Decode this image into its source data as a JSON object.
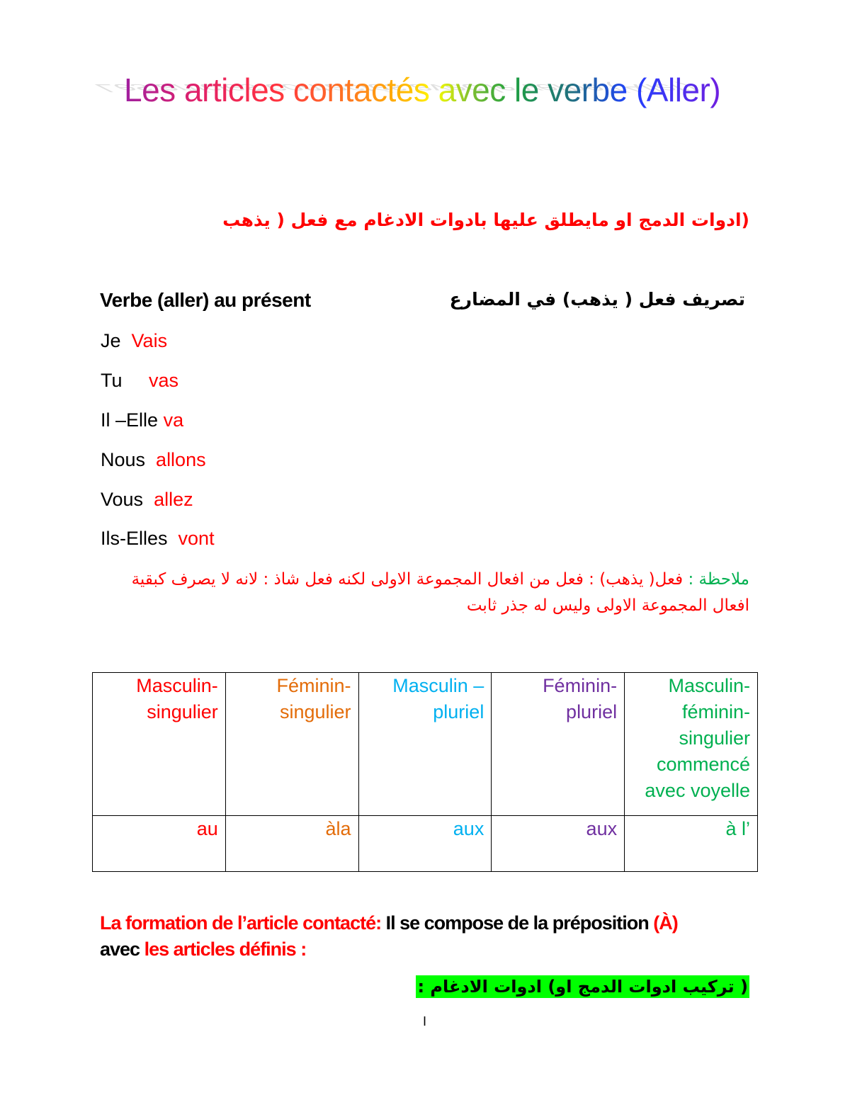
{
  "title": "Les articles contactés  avec le verbe (Aller)",
  "arabic_heading": "(ادوات الدمج  او مايطلق عليها بادوات الادغام  مع فعل ( يذهب",
  "conjugation": {
    "heading_fr": "Verbe (aller) au présent",
    "heading_ar": "تصريف فعل ( يذهب) في المضارع",
    "rows": [
      {
        "pronoun": "Je",
        "verb": "Vais"
      },
      {
        "pronoun": "Tu",
        "verb": "vas"
      },
      {
        "pronoun": "Il –Elle",
        "verb": "va"
      },
      {
        "pronoun": "Nous",
        "verb": "allons"
      },
      {
        "pronoun": "Vous",
        "verb": "allez"
      },
      {
        "pronoun": "Ils-Elles",
        "verb": "vont"
      }
    ]
  },
  "note": {
    "label": "ملاحظة :",
    "text": "فعل( يذهب) : فعل من افعال  المجموعة الاولى لكنه  فعل شاذ : لانه لا يصرف كبقية افعال المجموعة الاولى وليس له جذر ثابت"
  },
  "table": {
    "headers": [
      "Masculin-singulier",
      "Féminin-singulier",
      "Masculin –pluriel",
      "Féminin-pluriel",
      "Masculin-féminin-singulier commencé avec voyelle"
    ],
    "values": [
      "au",
      "àla",
      "aux",
      "aux",
      "à l’"
    ],
    "colors": [
      "#ff0000",
      "#e36c09",
      "#00b0f0",
      "#7030a0",
      "#00b050"
    ]
  },
  "formation": {
    "label": "La formation de l’article contacté:",
    "text1": " Il se compose de la préposition ",
    "prep": "(À)",
    "text2": "avec ",
    "defs": "les articles définis :"
  },
  "highlight_ar": "( تركيب ادوات الدمج او) ادوات الادغام :",
  "page_number": "I"
}
